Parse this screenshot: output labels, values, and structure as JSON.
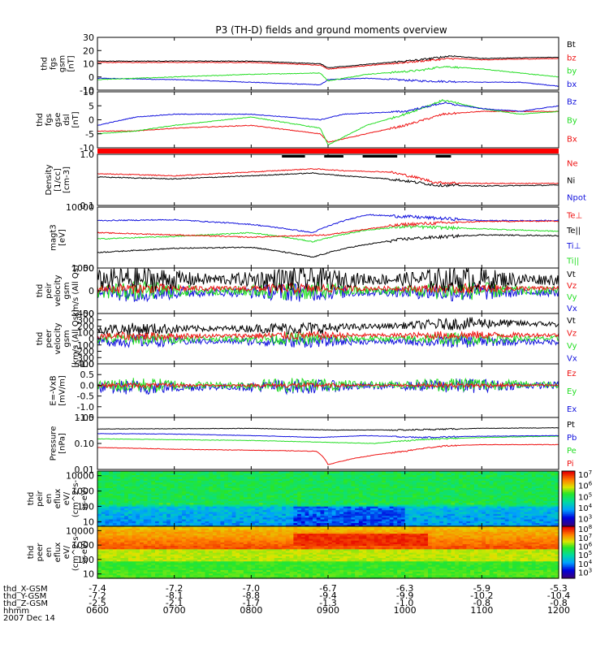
{
  "title": "P3 (TH-D) fields and ground moments overview",
  "time_axis": {
    "range": [
      "0600",
      "1200"
    ],
    "ticks": [
      "0600",
      "0700",
      "0800",
      "0900",
      "1000",
      "1100",
      "1200"
    ],
    "row_labels": [
      "thd_X-GSM",
      "thd_Y-GSM",
      "thd_Z-GSM",
      "hhmm",
      "2007 Dec 14"
    ],
    "x_gsm": [
      "-7.4",
      "-7.2",
      "-7.0",
      "-6.7",
      "-6.3",
      "-5.9",
      "-5.3"
    ],
    "y_gsm": [
      "-7.2",
      "-8.1",
      "-8.8",
      "-9.4",
      "-9.9",
      "-10.2",
      "-10.4"
    ],
    "z_gsm": [
      "-2.5",
      "-2.1",
      "-1.7",
      "-1.3",
      "-1.0",
      "-0.8",
      "-0.8"
    ],
    "date": "2007 Dec 14"
  },
  "colors": {
    "black": "#000000",
    "red": "#ee1111",
    "green": "#22dd22",
    "blue": "#1111dd",
    "flag": "#ff0000"
  },
  "chart_data": [
    {
      "type": "line",
      "ylabel": [
        "thd",
        "fgs",
        "gsm",
        "[nT]"
      ],
      "ylim": [
        -10,
        30
      ],
      "yticks": [
        "30",
        "20",
        "10",
        "0",
        "-10"
      ],
      "series": [
        {
          "name": "Bt",
          "color": "black",
          "key": [
            [
              0,
              12
            ],
            [
              2,
              12
            ],
            [
              2.9,
              10
            ],
            [
              3.0,
              7
            ],
            [
              3.4,
              9
            ],
            [
              3.8,
              11
            ],
            [
              4.2,
              13
            ],
            [
              4.6,
              16
            ],
            [
              5.0,
              14
            ],
            [
              6,
              15
            ]
          ]
        },
        {
          "name": "bz",
          "color": "red",
          "key": [
            [
              0,
              11
            ],
            [
              2,
              11
            ],
            [
              2.9,
              9
            ],
            [
              3.0,
              6
            ],
            [
              3.4,
              8
            ],
            [
              3.8,
              10
            ],
            [
              4.2,
              12
            ],
            [
              4.6,
              14
            ],
            [
              5.0,
              13
            ],
            [
              6,
              14
            ]
          ]
        },
        {
          "name": "by",
          "color": "green",
          "key": [
            [
              0,
              -2
            ],
            [
              1,
              0
            ],
            [
              2,
              2
            ],
            [
              2.9,
              3
            ],
            [
              3.0,
              -3
            ],
            [
              3.5,
              2
            ],
            [
              4.2,
              5
            ],
            [
              4.5,
              8
            ],
            [
              5,
              6
            ],
            [
              6,
              0
            ]
          ]
        },
        {
          "name": "bx",
          "color": "blue",
          "key": [
            [
              0,
              -1
            ],
            [
              1,
              -2
            ],
            [
              2,
              -4
            ],
            [
              2.9,
              -6
            ],
            [
              3,
              -2
            ],
            [
              3.5,
              -1
            ],
            [
              4.2,
              -3
            ],
            [
              5,
              -4
            ],
            [
              5.5,
              -4
            ],
            [
              6,
              -7
            ]
          ]
        }
      ]
    },
    {
      "type": "line",
      "ylabel": [
        "thd",
        "fgs",
        "gse",
        "dsl",
        "[nT]"
      ],
      "ylim": [
        -10,
        10
      ],
      "yticks": [
        "10",
        "5",
        "0",
        "-5",
        "-10"
      ],
      "series": [
        {
          "name": "Bz",
          "color": "blue",
          "key": [
            [
              0,
              -2
            ],
            [
              0.5,
              1
            ],
            [
              1,
              2
            ],
            [
              2,
              2
            ],
            [
              2.9,
              0
            ],
            [
              3.2,
              2
            ],
            [
              4,
              3
            ],
            [
              4.5,
              6
            ],
            [
              5,
              4
            ],
            [
              5.5,
              3
            ],
            [
              6,
              5
            ]
          ]
        },
        {
          "name": "By",
          "color": "green",
          "key": [
            [
              0,
              -5
            ],
            [
              0.5,
              -4
            ],
            [
              1,
              -2
            ],
            [
              2,
              1
            ],
            [
              2.9,
              -3
            ],
            [
              3,
              -9
            ],
            [
              3.5,
              -2
            ],
            [
              4,
              2
            ],
            [
              4.5,
              7
            ],
            [
              5,
              4
            ],
            [
              5.5,
              2
            ],
            [
              6,
              3
            ]
          ]
        },
        {
          "name": "Bx",
          "color": "red",
          "key": [
            [
              0,
              -4
            ],
            [
              0.5,
              -4
            ],
            [
              1,
              -3
            ],
            [
              2,
              -2
            ],
            [
              2.9,
              -5
            ],
            [
              3,
              -8
            ],
            [
              3.5,
              -5
            ],
            [
              4,
              -2
            ],
            [
              4.5,
              2
            ],
            [
              5,
              3
            ],
            [
              5.5,
              3
            ],
            [
              6,
              3
            ]
          ]
        }
      ]
    },
    {
      "type": "flag",
      "color": "flag",
      "gaps": []
    },
    {
      "type": "line",
      "ylabel": [
        "Density",
        "[1/cc]",
        "[cm-3]"
      ],
      "log": true,
      "ylim": [
        0.1,
        1.0
      ],
      "yticks": [
        "1.0",
        "0.1"
      ],
      "series": [
        {
          "name": "Ne",
          "color": "red",
          "key": [
            [
              0,
              0.42
            ],
            [
              1,
              0.38
            ],
            [
              2,
              0.45
            ],
            [
              2.8,
              0.52
            ],
            [
              3.2,
              0.48
            ],
            [
              3.8,
              0.45
            ],
            [
              4.4,
              0.28
            ],
            [
              5,
              0.27
            ],
            [
              6,
              0.27
            ]
          ]
        },
        {
          "name": "Ni",
          "color": "black",
          "key": [
            [
              0,
              0.36
            ],
            [
              1,
              0.33
            ],
            [
              2,
              0.38
            ],
            [
              2.8,
              0.43
            ],
            [
              3.2,
              0.38
            ],
            [
              3.8,
              0.33
            ],
            [
              4.4,
              0.25
            ],
            [
              5,
              0.24
            ],
            [
              6,
              0.25
            ]
          ]
        },
        {
          "name": "Npot",
          "color": "blue",
          "key": []
        }
      ]
    },
    {
      "type": "line",
      "ylabel": [
        "magt3",
        "[eV]"
      ],
      "log": true,
      "ylim": [
        1000,
        10000
      ],
      "yticks": [
        "10000",
        "1000"
      ],
      "series": [
        {
          "name": "Te⊥",
          "color": "red",
          "key": [
            [
              0,
              3800
            ],
            [
              1,
              3500
            ],
            [
              2,
              3200
            ],
            [
              3,
              3500
            ],
            [
              4,
              5200
            ],
            [
              5,
              5800
            ],
            [
              6,
              5900
            ]
          ]
        },
        {
          "name": "Te||",
          "color": "black",
          "key": [
            [
              0,
              1800
            ],
            [
              1,
              2100
            ],
            [
              2,
              2200
            ],
            [
              2.8,
              1500
            ],
            [
              3.3,
              2200
            ],
            [
              4,
              3000
            ],
            [
              5,
              3500
            ],
            [
              6,
              3400
            ]
          ]
        },
        {
          "name": "Ti⊥",
          "color": "blue",
          "key": [
            [
              0,
              6000
            ],
            [
              1,
              6200
            ],
            [
              2,
              5200
            ],
            [
              2.8,
              3800
            ],
            [
              3.5,
              7500
            ],
            [
              4,
              7000
            ],
            [
              5,
              6000
            ],
            [
              6,
              6000
            ]
          ]
        },
        {
          "name": "Ti||",
          "color": "green",
          "key": [
            [
              0,
              3000
            ],
            [
              1,
              3300
            ],
            [
              2,
              3800
            ],
            [
              2.8,
              2700
            ],
            [
              3.5,
              4200
            ],
            [
              4,
              4800
            ],
            [
              5,
              4400
            ],
            [
              6,
              4000
            ]
          ]
        }
      ]
    },
    {
      "type": "line",
      "ylabel": [
        "thd",
        "peir",
        "velocity",
        "gsm",
        "km/s (All Qs)"
      ],
      "ylim": [
        -50,
        50
      ],
      "yticks": [
        "50",
        "0",
        "-50"
      ],
      "series": [
        {
          "name": "Vt",
          "color": "black",
          "key": [
            [
              0,
              25
            ],
            [
              6,
              25
            ]
          ],
          "noise": 20
        },
        {
          "name": "Vz",
          "color": "red",
          "key": [
            [
              0,
              5
            ],
            [
              6,
              5
            ]
          ],
          "noise": 8
        },
        {
          "name": "Vy",
          "color": "green",
          "key": [
            [
              0,
              0
            ],
            [
              6,
              0
            ]
          ],
          "noise": 15
        },
        {
          "name": "Vx",
          "color": "blue",
          "key": [
            [
              0,
              -3
            ],
            [
              6,
              -3
            ]
          ],
          "noise": 15
        }
      ]
    },
    {
      "type": "line",
      "ylabel": [
        "thd",
        "peer",
        "velocity",
        "gsm",
        "[km/s (All Qs)]"
      ],
      "ylim": [
        -400,
        400
      ],
      "yticks": [
        "400",
        "300",
        "200",
        "100",
        "0",
        "-100",
        "-200",
        "-300",
        "-400"
      ],
      "series": [
        {
          "name": "Vt",
          "color": "black",
          "key": [
            [
              0,
              150
            ],
            [
              3,
              170
            ],
            [
              5,
              250
            ],
            [
              6,
              230
            ]
          ],
          "noise": 70
        },
        {
          "name": "Vz",
          "color": "red",
          "key": [
            [
              0,
              40
            ],
            [
              6,
              60
            ]
          ],
          "noise": 50
        },
        {
          "name": "Vy",
          "color": "green",
          "key": [
            [
              0,
              0
            ],
            [
              6,
              0
            ]
          ],
          "noise": 70
        },
        {
          "name": "Vx",
          "color": "blue",
          "key": [
            [
              0,
              -40
            ],
            [
              6,
              -50
            ]
          ],
          "noise": 70
        }
      ]
    },
    {
      "type": "line",
      "ylabel": [
        "E=-VxB",
        "[mV/m]"
      ],
      "ylim": [
        -1.5,
        1.0
      ],
      "yticks": [
        "1.0",
        "0.5",
        "0.0",
        "-0.5",
        "-1.0",
        "-1.5"
      ],
      "series": [
        {
          "name": "Ez",
          "color": "red",
          "key": [
            [
              0,
              0
            ],
            [
              6,
              0
            ]
          ],
          "noise": 0.08
        },
        {
          "name": "Ey",
          "color": "green",
          "key": [
            [
              0,
              0
            ],
            [
              6,
              0.05
            ]
          ],
          "noise": 0.25
        },
        {
          "name": "Ex",
          "color": "blue",
          "key": [
            [
              0,
              -0.1
            ],
            [
              6,
              0
            ]
          ],
          "noise": 0.25
        }
      ]
    },
    {
      "type": "line",
      "ylabel": [
        "Pressure",
        "[nPa]"
      ],
      "log": true,
      "ylim": [
        0.01,
        1.0
      ],
      "yticks": [
        "1.00",
        "0.10",
        "0.01"
      ],
      "series": [
        {
          "name": "Pt",
          "color": "black",
          "key": [
            [
              0,
              0.36
            ],
            [
              2,
              0.38
            ],
            [
              3,
              0.33
            ],
            [
              4,
              0.33
            ],
            [
              5,
              0.38
            ],
            [
              6,
              0.4
            ]
          ]
        },
        {
          "name": "Pb",
          "color": "blue",
          "key": [
            [
              0,
              0.24
            ],
            [
              1,
              0.23
            ],
            [
              2,
              0.2
            ],
            [
              2.9,
              0.17
            ],
            [
              3.5,
              0.2
            ],
            [
              4.2,
              0.17
            ],
            [
              5,
              0.19
            ],
            [
              6,
              0.2
            ]
          ]
        },
        {
          "name": "Pe",
          "color": "green",
          "key": [
            [
              0,
              0.15
            ],
            [
              2,
              0.13
            ],
            [
              3,
              0.11
            ],
            [
              3.6,
              0.1
            ],
            [
              4.2,
              0.14
            ],
            [
              5,
              0.17
            ],
            [
              6,
              0.19
            ]
          ]
        },
        {
          "name": "Pi",
          "color": "red",
          "key": [
            [
              0,
              0.07
            ],
            [
              1,
              0.06
            ],
            [
              2,
              0.055
            ],
            [
              2.85,
              0.05
            ],
            [
              3.0,
              0.015
            ],
            [
              3.3,
              0.025
            ],
            [
              4,
              0.05
            ],
            [
              4.5,
              0.08
            ],
            [
              5,
              0.09
            ],
            [
              6,
              0.09
            ]
          ]
        }
      ]
    },
    {
      "type": "heatmap",
      "ylabel": [
        "thd",
        "peir",
        "en",
        "eflux",
        "eV/",
        "(cm^2-s-",
        "sr-eV)"
      ],
      "log": true,
      "ylim": [
        5,
        20000
      ],
      "yticks": [
        "10000",
        "1000",
        "100",
        "10"
      ],
      "colorbar": {
        "ticks": [
          "10^7",
          "10^6",
          "10^5",
          "10^4",
          "10^3"
        ]
      }
    },
    {
      "type": "heatmap",
      "ylabel": [
        "thd",
        "peer",
        "en",
        "eflux",
        "eV/",
        "(cm^2-s-",
        "sr-eV)"
      ],
      "log": true,
      "ylim": [
        5,
        20000
      ],
      "yticks": [
        "10000",
        "1000",
        "100",
        "10"
      ],
      "colorbar": {
        "ticks": [
          "10^8",
          "10^7",
          "10^6",
          "10^5",
          "10^4",
          "10^3"
        ]
      }
    }
  ]
}
